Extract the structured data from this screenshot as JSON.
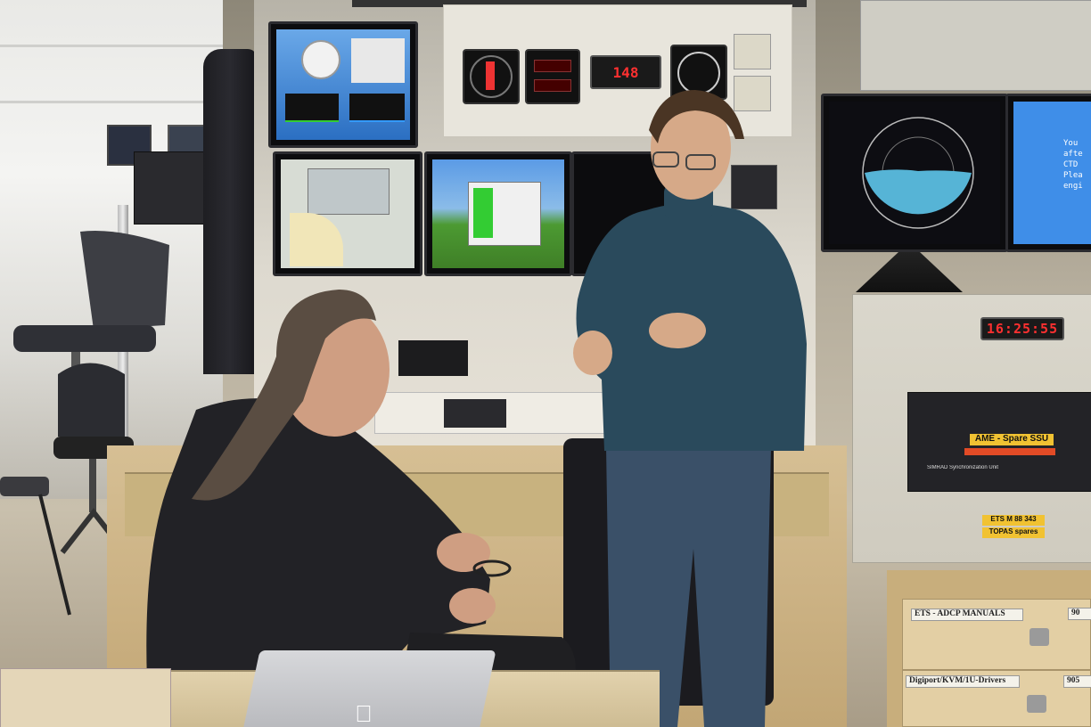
{
  "panel": {
    "heading_display": "148",
    "clock_display": "16:25:55"
  },
  "rack": {
    "label_ame": "AME - Spare SSU",
    "label_unit": "SIMRAD Synchronization Unit",
    "label_ets": "ETS M 88 343",
    "label_topas": "TOPAS spares"
  },
  "drawers": {
    "drawer1_label": "ETS - ADCP MANUALS",
    "drawer1_number": "90",
    "drawer2_label": "Digiport/KVM/1U-Drivers",
    "drawer2_number": "905"
  },
  "screens": {
    "right_text_1": "You",
    "right_text_2": "afte",
    "right_text_3": "CTD",
    "right_text_4": "Plea",
    "right_text_5": "engi"
  },
  "colors": {
    "led_red": "#ff3030",
    "sonar_blue": "#56b4d6",
    "screen_blue": "#3f8ee8",
    "sweater": "#2a4a5c",
    "tag_yellow": "#f1c232"
  }
}
